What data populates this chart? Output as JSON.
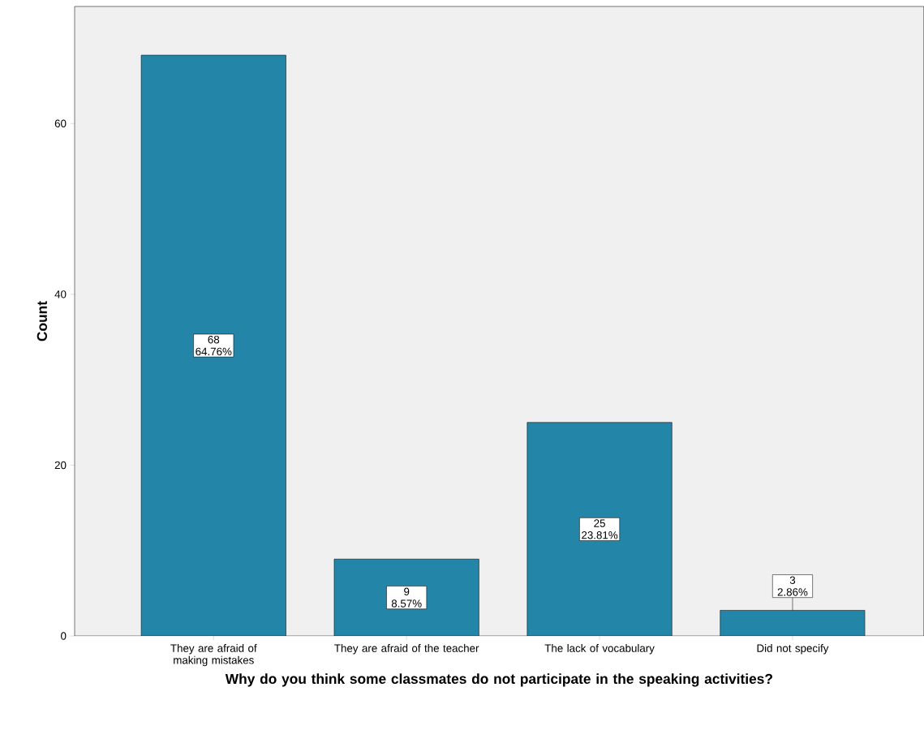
{
  "chart_data": {
    "type": "bar",
    "xlabel": "Why do you think some classmates do not participate in the speaking activities?",
    "ylabel": "Count",
    "categories": [
      "They are afraid of making mistakes",
      "They are afraid of the teacher",
      "The lack of vocabulary",
      "Did not specify"
    ],
    "values": [
      68,
      9,
      25,
      3
    ],
    "value_labels": [
      "68 64.76%",
      "9 8.57%",
      "25 23.81%",
      "3 2.86%"
    ],
    "color": "#2386a8",
    "ylim": [
      0,
      73.7
    ],
    "yticks": [
      0,
      20,
      40,
      60
    ]
  }
}
